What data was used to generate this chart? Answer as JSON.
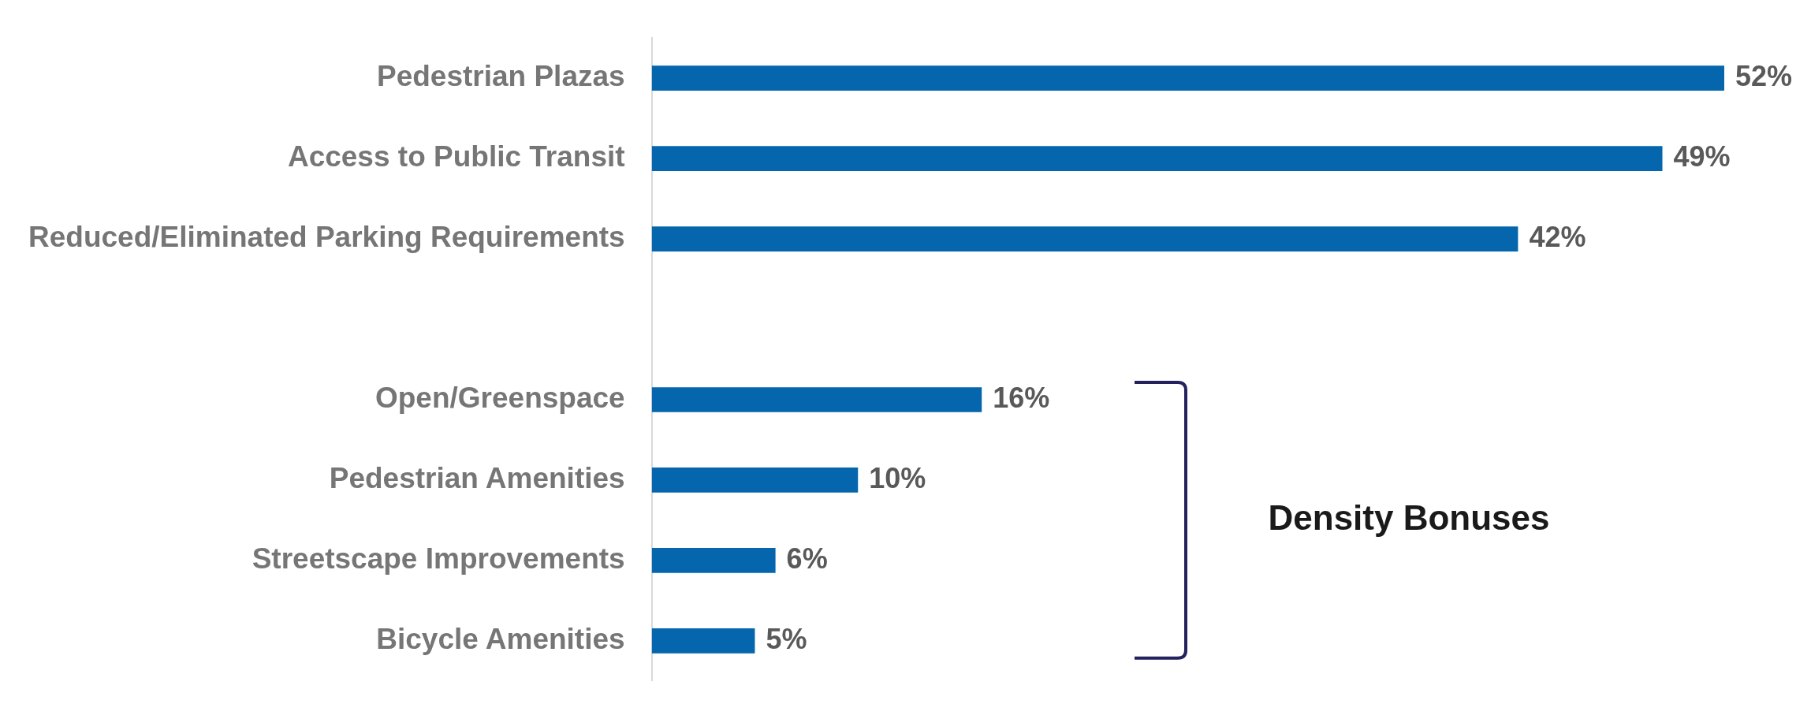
{
  "chart_data": {
    "type": "bar",
    "orientation": "horizontal",
    "categories": [
      "Pedestrian Plazas",
      "Access to Public Transit",
      "Reduced/Eliminated Parking Requirements",
      null,
      "Open/Greenspace",
      "Pedestrian Amenities",
      "Streetscape Improvements",
      "Bicycle Amenities"
    ],
    "values": [
      52,
      49,
      42,
      null,
      16,
      10,
      6,
      5
    ],
    "value_labels": [
      "52%",
      "49%",
      "42%",
      null,
      "16%",
      "10%",
      "6%",
      "5%"
    ],
    "color": "#0566ae",
    "annotations": [
      "Density Bonuses"
    ],
    "legend": false
  }
}
